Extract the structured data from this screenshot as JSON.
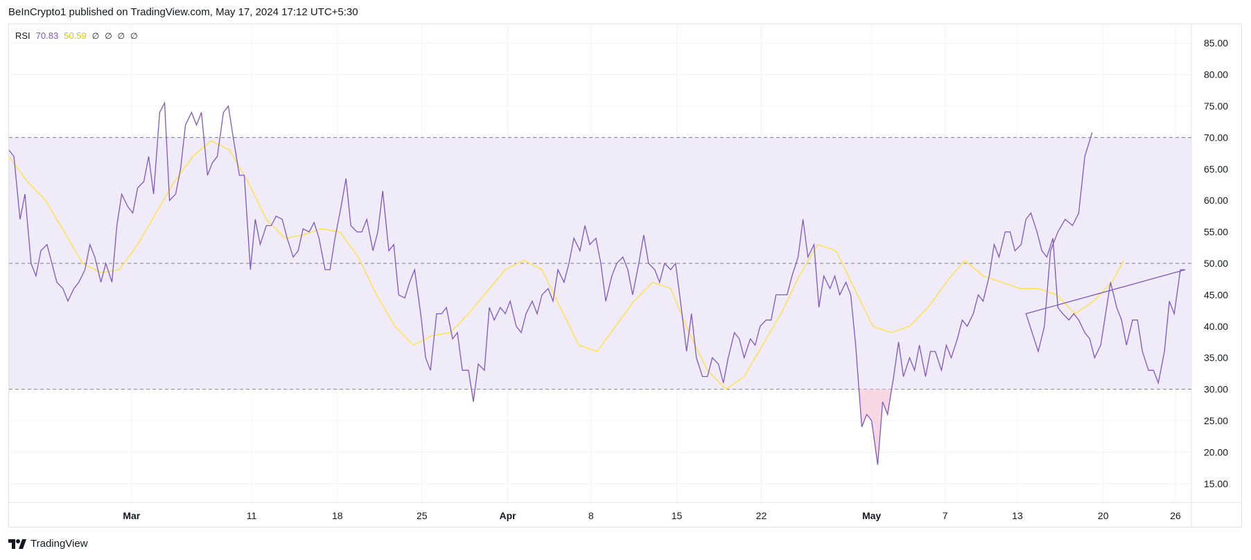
{
  "header": {
    "caption": "BeInCrypto1 published on TradingView.com, May 17, 2024 17:12 UTC+5:30"
  },
  "legend": {
    "name": "RSI",
    "rsi_value": "70.83",
    "ma_value": "50.59",
    "placeholders": [
      "∅",
      "∅",
      "∅",
      "∅"
    ]
  },
  "footer": {
    "brand": "TradingView"
  },
  "colors": {
    "rsi_line": "#7e57c2",
    "ma_line": "#ffe24d",
    "band_fill": "#f0ebf8",
    "oversold_fill": "#f7d7e4",
    "grid": "#f0f3fa",
    "dash": "#787b86"
  },
  "chart_data": {
    "type": "line",
    "ylim": [
      12,
      88
    ],
    "yticks": [
      "85.00",
      "80.00",
      "75.00",
      "70.00",
      "65.00",
      "60.00",
      "55.00",
      "50.00",
      "45.00",
      "40.00",
      "35.00",
      "30.00",
      "25.00",
      "20.00",
      "15.00"
    ],
    "band": {
      "upper": 70,
      "middle": 50,
      "lower": 30
    },
    "xlim": [
      0,
      96.5
    ],
    "xticks": [
      {
        "label": "Mar",
        "x": 10.0,
        "bold": true
      },
      {
        "label": "11",
        "x": 19.8,
        "bold": false
      },
      {
        "label": "18",
        "x": 26.8,
        "bold": false
      },
      {
        "label": "25",
        "x": 33.7,
        "bold": false
      },
      {
        "label": "Apr",
        "x": 40.7,
        "bold": true
      },
      {
        "label": "8",
        "x": 47.5,
        "bold": false
      },
      {
        "label": "15",
        "x": 54.5,
        "bold": false
      },
      {
        "label": "22",
        "x": 61.4,
        "bold": false
      },
      {
        "label": "May",
        "x": 70.4,
        "bold": true
      },
      {
        "label": "7",
        "x": 76.4,
        "bold": false
      },
      {
        "label": "13",
        "x": 82.3,
        "bold": false
      },
      {
        "label": "20",
        "x": 89.3,
        "bold": false
      },
      {
        "label": "26",
        "x": 95.2,
        "bold": false
      }
    ],
    "series": [
      {
        "role": "rsi",
        "points": [
          [
            0,
            68
          ],
          [
            0.4,
            67
          ],
          [
            0.9,
            57
          ],
          [
            1.3,
            61
          ],
          [
            1.8,
            50
          ],
          [
            2.2,
            48
          ],
          [
            2.6,
            52
          ],
          [
            3.1,
            53
          ],
          [
            3.5,
            50
          ],
          [
            3.9,
            47
          ],
          [
            4.4,
            46
          ],
          [
            4.8,
            44
          ],
          [
            5.3,
            46
          ],
          [
            5.7,
            47
          ],
          [
            6.2,
            49
          ],
          [
            6.6,
            53
          ],
          [
            7.0,
            51
          ],
          [
            7.5,
            47
          ],
          [
            7.9,
            50
          ],
          [
            8.4,
            47
          ],
          [
            8.8,
            56
          ],
          [
            9.2,
            61
          ],
          [
            9.7,
            59
          ],
          [
            10.1,
            58
          ],
          [
            10.5,
            62
          ],
          [
            11.0,
            63
          ],
          [
            11.4,
            67
          ],
          [
            11.8,
            61
          ],
          [
            12.3,
            74
          ],
          [
            12.7,
            75.5
          ],
          [
            13.1,
            60
          ],
          [
            13.6,
            61
          ],
          [
            14.0,
            65
          ],
          [
            14.4,
            72
          ],
          [
            14.9,
            74
          ],
          [
            15.3,
            72
          ],
          [
            15.7,
            74
          ],
          [
            16.2,
            64
          ],
          [
            16.6,
            66
          ],
          [
            17.0,
            67
          ],
          [
            17.5,
            74
          ],
          [
            17.9,
            75
          ],
          [
            18.3,
            70
          ],
          [
            18.8,
            64
          ],
          [
            19.2,
            64
          ],
          [
            19.7,
            49
          ],
          [
            20.1,
            57
          ],
          [
            20.5,
            53
          ],
          [
            21.0,
            56
          ],
          [
            21.4,
            56
          ],
          [
            21.8,
            57.5
          ],
          [
            22.3,
            57
          ],
          [
            22.7,
            54
          ],
          [
            23.2,
            51
          ],
          [
            23.6,
            52
          ],
          [
            24.0,
            55.5
          ],
          [
            24.5,
            55
          ],
          [
            24.9,
            56.5
          ],
          [
            25.3,
            54
          ],
          [
            25.8,
            49
          ],
          [
            26.2,
            49
          ],
          [
            26.6,
            54
          ],
          [
            27.1,
            59
          ],
          [
            27.5,
            63.5
          ],
          [
            27.9,
            56
          ],
          [
            28.4,
            55
          ],
          [
            28.8,
            55
          ],
          [
            29.2,
            57
          ],
          [
            29.7,
            52
          ],
          [
            30.1,
            55
          ],
          [
            30.5,
            61.5
          ],
          [
            31.0,
            52
          ],
          [
            31.4,
            53
          ],
          [
            31.8,
            45
          ],
          [
            32.3,
            44.5
          ],
          [
            32.7,
            47
          ],
          [
            33.1,
            49
          ],
          [
            33.6,
            42
          ],
          [
            34.0,
            35
          ],
          [
            34.4,
            33
          ],
          [
            34.9,
            42
          ],
          [
            35.3,
            42
          ],
          [
            35.7,
            43
          ],
          [
            36.2,
            38
          ],
          [
            36.6,
            39
          ],
          [
            37.0,
            33
          ],
          [
            37.5,
            33
          ],
          [
            37.9,
            28
          ],
          [
            38.3,
            34
          ],
          [
            38.8,
            33
          ],
          [
            39.2,
            43
          ],
          [
            39.6,
            41
          ],
          [
            40.1,
            43
          ],
          [
            40.5,
            42
          ],
          [
            40.9,
            44
          ],
          [
            41.4,
            40
          ],
          [
            41.8,
            39
          ],
          [
            42.2,
            42
          ],
          [
            42.7,
            44
          ],
          [
            43.1,
            42
          ],
          [
            43.5,
            45
          ],
          [
            44.0,
            46
          ],
          [
            44.4,
            44
          ],
          [
            44.8,
            49
          ],
          [
            45.3,
            47
          ],
          [
            45.7,
            50
          ],
          [
            46.1,
            54
          ],
          [
            46.6,
            52
          ],
          [
            47.0,
            56
          ],
          [
            47.4,
            53
          ],
          [
            47.9,
            54
          ],
          [
            48.3,
            50
          ],
          [
            48.7,
            44
          ],
          [
            49.2,
            48
          ],
          [
            49.6,
            50
          ],
          [
            50.1,
            51
          ],
          [
            50.5,
            49
          ],
          [
            50.9,
            45
          ],
          [
            51.4,
            50
          ],
          [
            51.8,
            54.5
          ],
          [
            52.2,
            50
          ],
          [
            52.7,
            49
          ],
          [
            53.1,
            47
          ],
          [
            53.5,
            50
          ],
          [
            54.0,
            49
          ],
          [
            54.4,
            50
          ],
          [
            54.8,
            44
          ],
          [
            55.3,
            36
          ],
          [
            55.7,
            42
          ],
          [
            56.1,
            35
          ],
          [
            56.6,
            32
          ],
          [
            57.0,
            32
          ],
          [
            57.4,
            35
          ],
          [
            57.9,
            34
          ],
          [
            58.3,
            31
          ],
          [
            58.7,
            35
          ],
          [
            59.2,
            39
          ],
          [
            59.6,
            38
          ],
          [
            60.0,
            35
          ],
          [
            60.5,
            38
          ],
          [
            60.9,
            37
          ],
          [
            61.3,
            40
          ],
          [
            61.8,
            41
          ],
          [
            62.2,
            41
          ],
          [
            62.6,
            45
          ],
          [
            63.1,
            45
          ],
          [
            63.5,
            45
          ],
          [
            63.9,
            48
          ],
          [
            64.4,
            51
          ],
          [
            64.8,
            57
          ],
          [
            65.2,
            51
          ],
          [
            65.7,
            53
          ],
          [
            66.1,
            43
          ],
          [
            66.5,
            48
          ],
          [
            67.0,
            46
          ],
          [
            67.4,
            48
          ],
          [
            67.8,
            45
          ],
          [
            68.3,
            47
          ],
          [
            68.7,
            45
          ],
          [
            69.1,
            37
          ],
          [
            69.6,
            24
          ],
          [
            70.0,
            26
          ],
          [
            70.4,
            25
          ],
          [
            70.9,
            18
          ],
          [
            71.3,
            28
          ],
          [
            71.7,
            26
          ],
          [
            72.2,
            32
          ],
          [
            72.6,
            37.5
          ],
          [
            73.0,
            32
          ],
          [
            73.5,
            35
          ],
          [
            73.9,
            33
          ],
          [
            74.3,
            37
          ],
          [
            74.8,
            32
          ],
          [
            75.2,
            36
          ],
          [
            75.6,
            36
          ],
          [
            76.1,
            33
          ],
          [
            76.5,
            37
          ],
          [
            76.9,
            35
          ],
          [
            77.4,
            38
          ],
          [
            77.8,
            41
          ],
          [
            78.2,
            40
          ],
          [
            78.7,
            42
          ],
          [
            79.1,
            45
          ],
          [
            79.5,
            44
          ],
          [
            80.0,
            48
          ],
          [
            80.4,
            53
          ],
          [
            80.8,
            51
          ],
          [
            81.3,
            55
          ],
          [
            81.7,
            55
          ],
          [
            82.1,
            52
          ],
          [
            82.6,
            53
          ],
          [
            83.0,
            57
          ],
          [
            83.4,
            58
          ],
          [
            83.9,
            55
          ],
          [
            84.3,
            52
          ],
          [
            84.7,
            51
          ],
          [
            85.2,
            54
          ],
          [
            85.6,
            43
          ],
          [
            86.0,
            42
          ],
          [
            86.5,
            41
          ],
          [
            86.9,
            42
          ],
          [
            87.3,
            41
          ],
          [
            87.8,
            39
          ],
          [
            88.2,
            38
          ],
          [
            88.6,
            35
          ],
          [
            89.1,
            37
          ],
          [
            89.5,
            42
          ],
          [
            89.9,
            47
          ],
          [
            90.4,
            43
          ],
          [
            90.8,
            41
          ],
          [
            91.2,
            37
          ],
          [
            91.7,
            41
          ],
          [
            92.1,
            41
          ],
          [
            92.5,
            36
          ],
          [
            93.0,
            33
          ],
          [
            93.4,
            33
          ],
          [
            93.8,
            31
          ],
          [
            94.3,
            36
          ],
          [
            94.7,
            44
          ],
          [
            95.1,
            42
          ],
          [
            95.6,
            49
          ],
          [
            96.0,
            49
          ]
        ]
      },
      {
        "role": "ma",
        "points": [
          [
            0,
            67
          ],
          [
            1.5,
            63
          ],
          [
            3,
            60
          ],
          [
            4.5,
            55
          ],
          [
            6,
            50
          ],
          [
            7.5,
            48.5
          ],
          [
            9,
            49
          ],
          [
            10.5,
            53
          ],
          [
            12,
            58
          ],
          [
            13.5,
            63
          ],
          [
            15,
            67
          ],
          [
            16.5,
            69.5
          ],
          [
            18,
            68
          ],
          [
            19.5,
            63
          ],
          [
            21,
            57
          ],
          [
            22.5,
            54
          ],
          [
            24,
            54.5
          ],
          [
            25.5,
            55.5
          ],
          [
            27,
            55
          ],
          [
            28.5,
            51
          ],
          [
            30,
            45
          ],
          [
            31.5,
            40
          ],
          [
            33,
            37
          ],
          [
            34.5,
            38.5
          ],
          [
            36,
            39
          ],
          [
            37.5,
            42
          ],
          [
            39,
            45.5
          ],
          [
            40.5,
            49
          ],
          [
            42,
            50.5
          ],
          [
            43.5,
            49
          ],
          [
            45,
            43
          ],
          [
            46.5,
            37
          ],
          [
            48,
            36
          ],
          [
            49.5,
            40
          ],
          [
            51,
            44
          ],
          [
            52.5,
            47
          ],
          [
            54,
            46
          ],
          [
            55.5,
            39
          ],
          [
            57,
            33
          ],
          [
            58.5,
            30
          ],
          [
            60,
            32
          ],
          [
            61.5,
            37
          ],
          [
            63,
            42
          ],
          [
            64.5,
            48
          ],
          [
            66,
            53
          ],
          [
            67.5,
            52
          ],
          [
            69,
            46
          ],
          [
            70.5,
            40
          ],
          [
            72,
            39
          ],
          [
            73.5,
            40
          ],
          [
            75,
            43
          ],
          [
            76.5,
            47
          ],
          [
            78,
            50.5
          ],
          [
            79.5,
            48
          ],
          [
            81,
            47
          ],
          [
            82.5,
            46
          ],
          [
            84,
            46
          ],
          [
            85.5,
            45
          ],
          [
            87,
            42
          ],
          [
            88.5,
            44
          ],
          [
            90,
            47
          ],
          [
            91,
            50.5
          ]
        ]
      }
    ],
    "rsi_tail": [
      [
        83,
        42
      ],
      [
        84,
        36
      ],
      [
        84.5,
        40
      ],
      [
        85,
        52
      ],
      [
        85.6,
        55
      ],
      [
        86.2,
        57
      ],
      [
        86.8,
        56
      ],
      [
        87.3,
        58
      ],
      [
        87.8,
        67
      ],
      [
        88.4,
        70.8
      ]
    ]
  }
}
